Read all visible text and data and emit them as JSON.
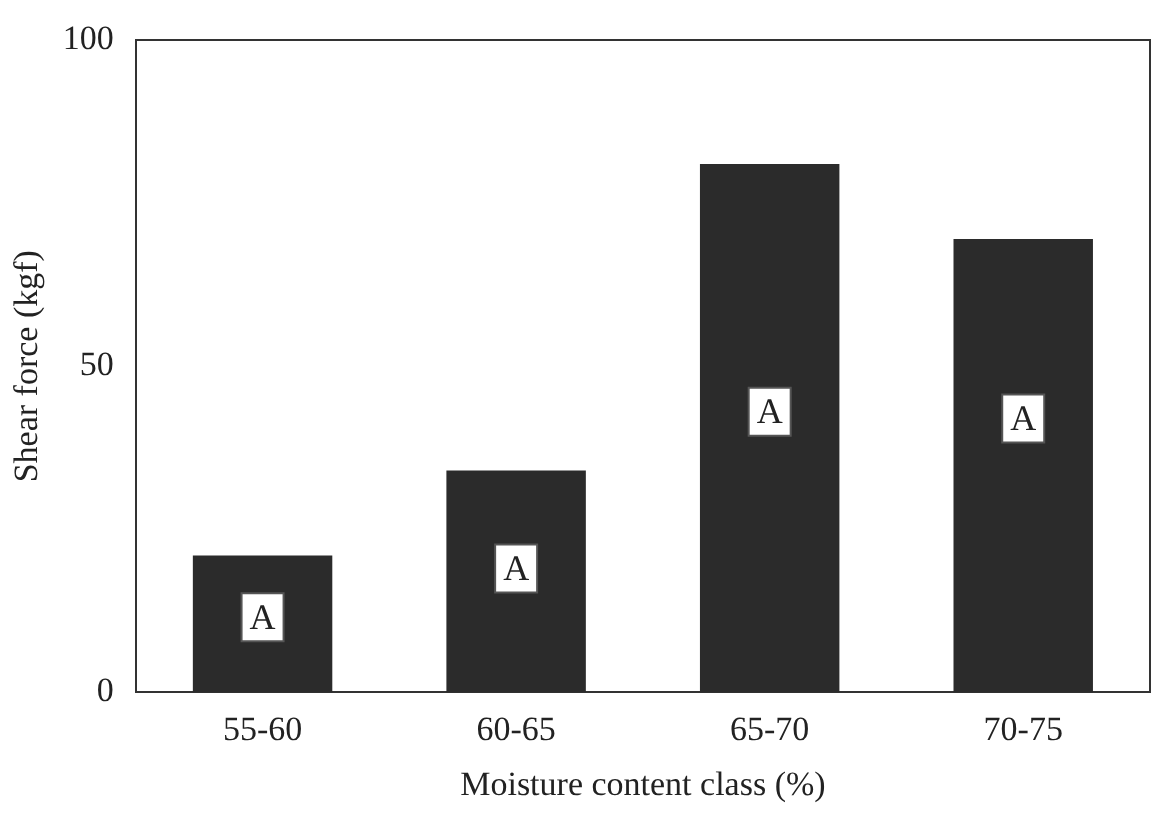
{
  "chart_data": {
    "type": "bar",
    "xlabel": "Moisture content class (%)",
    "ylabel": "Shear force (kgf)",
    "categories": [
      "55-60",
      "60-65",
      "65-70",
      "70-75"
    ],
    "values": [
      21,
      34,
      81,
      69.5
    ],
    "color": "#2b2b2b",
    "ylim": [
      0,
      100
    ],
    "yticks": [
      0,
      50,
      100
    ],
    "grid": false,
    "legend": false,
    "annotations": [
      {
        "text": "A",
        "x": "55-60",
        "y": 11.5
      },
      {
        "text": "A",
        "x": "60-65",
        "y": 19
      },
      {
        "text": "A",
        "x": "65-70",
        "y": 43
      },
      {
        "text": "A",
        "x": "70-75",
        "y": 42
      }
    ]
  }
}
